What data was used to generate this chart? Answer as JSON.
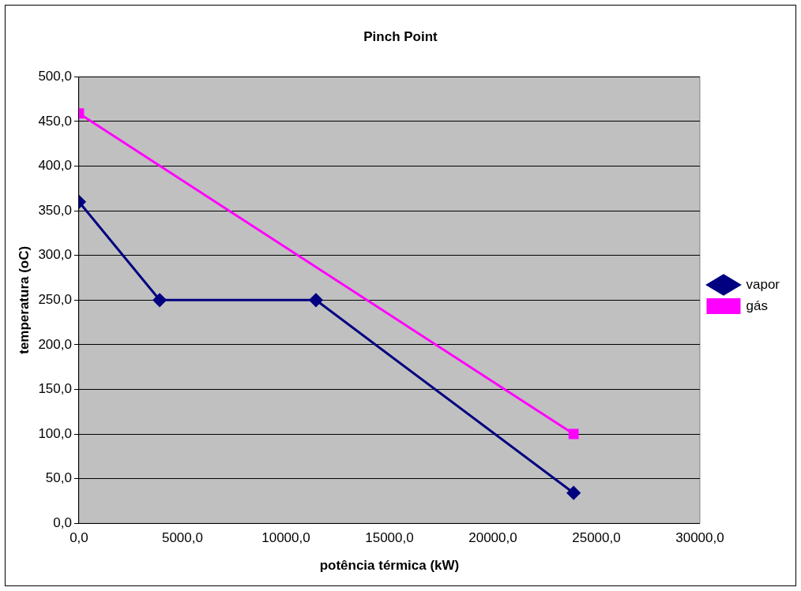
{
  "chart_data": {
    "type": "line",
    "title": "Pinch Point",
    "xlabel": "potência térmica (kW)",
    "ylabel": "temperatura (oC)",
    "series": [
      {
        "name": "vapor",
        "color": "#000080",
        "marker": "diamond",
        "x": [
          0,
          3900,
          11450,
          23900
        ],
        "values": [
          360,
          250,
          250,
          34
        ]
      },
      {
        "name": "gás",
        "color": "#ff00ff",
        "marker": "square",
        "x": [
          0,
          23900
        ],
        "values": [
          459,
          100
        ]
      }
    ],
    "xlim": [
      0,
      30000
    ],
    "xticks": [
      {
        "value": 0,
        "label": "0,0"
      },
      {
        "value": 5000,
        "label": "5000,0"
      },
      {
        "value": 10000,
        "label": "10000,0"
      },
      {
        "value": 15000,
        "label": "15000,0"
      },
      {
        "value": 20000,
        "label": "20000,0"
      },
      {
        "value": 25000,
        "label": "25000,0"
      },
      {
        "value": 30000,
        "label": "30000,0"
      }
    ],
    "ylim": [
      0,
      500
    ],
    "yticks": [
      {
        "value": 0,
        "label": "0,0"
      },
      {
        "value": 50,
        "label": "50,0"
      },
      {
        "value": 100,
        "label": "100,0"
      },
      {
        "value": 150,
        "label": "150,0"
      },
      {
        "value": 200,
        "label": "200,0"
      },
      {
        "value": 250,
        "label": "250,0"
      },
      {
        "value": 300,
        "label": "300,0"
      },
      {
        "value": 350,
        "label": "350,0"
      },
      {
        "value": 400,
        "label": "400,0"
      },
      {
        "value": 450,
        "label": "450,0"
      },
      {
        "value": 500,
        "label": "500,0"
      }
    ],
    "grid": "y",
    "legend": "right",
    "line_style": "solid"
  }
}
